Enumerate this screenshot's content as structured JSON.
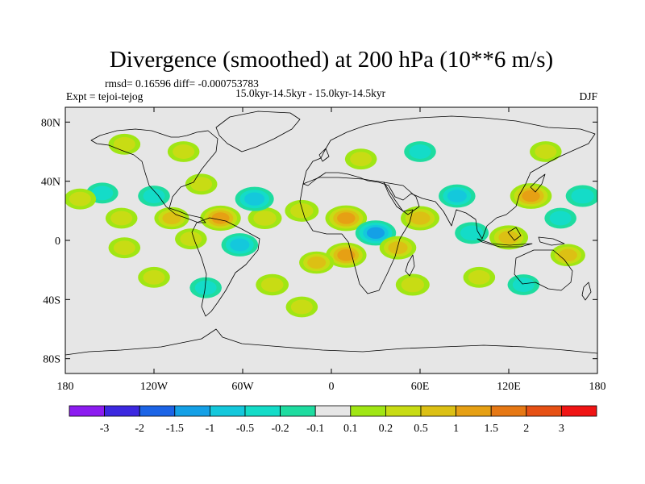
{
  "chart_data": {
    "type": "heatmap",
    "title": "Divergence (smoothed) at 200 hPa (10**6 m/s)",
    "stats_line": "rmsd= 0.16596 diff= -0.000753783",
    "period_line": "15.0kyr-14.5kyr - 15.0kyr-14.5kyr",
    "experiment": "Expt = tejoi-tejog",
    "season": "DJF",
    "x_ticks": [
      {
        "value": -180,
        "label": "180"
      },
      {
        "value": -120,
        "label": "120W"
      },
      {
        "value": -60,
        "label": "60W"
      },
      {
        "value": 0,
        "label": "0"
      },
      {
        "value": 60,
        "label": "60E"
      },
      {
        "value": 120,
        "label": "120E"
      },
      {
        "value": 180,
        "label": "180"
      }
    ],
    "y_ticks": [
      {
        "value": 80,
        "label": "80N"
      },
      {
        "value": 40,
        "label": "40N"
      },
      {
        "value": 0,
        "label": "0"
      },
      {
        "value": -40,
        "label": "40S"
      },
      {
        "value": -80,
        "label": "80S"
      }
    ],
    "xlim": [
      -180,
      180
    ],
    "ylim": [
      -90,
      90
    ],
    "colorbar": {
      "colors": [
        "#8c1cf0",
        "#3c28e0",
        "#1c64e6",
        "#14a0e6",
        "#14c8dc",
        "#14dcc8",
        "#1edca0",
        "#e6e6e6",
        "#a0e614",
        "#c8dc14",
        "#dcc014",
        "#e6a014",
        "#e67814",
        "#e65014",
        "#f01414"
      ],
      "labels": [
        "-3",
        "-2",
        "-1.5",
        "-1",
        "-0.5",
        "-0.2",
        "-0.1",
        "0.1",
        "0.2",
        "0.5",
        "1",
        "1.5",
        "2",
        "3"
      ],
      "levels": [
        -3,
        -2,
        -1.5,
        -1,
        -0.5,
        -0.2,
        -0.1,
        0.1,
        0.2,
        0.5,
        1,
        1.5,
        2,
        3
      ]
    },
    "anomalies": [
      {
        "lon": -142,
        "lat": 15,
        "value": 0.3
      },
      {
        "lon": -108,
        "lat": 15,
        "value": 0.6
      },
      {
        "lon": -75,
        "lat": 15,
        "value": 1.2
      },
      {
        "lon": -45,
        "lat": 15,
        "value": 0.5
      },
      {
        "lon": -155,
        "lat": 32,
        "value": -0.3
      },
      {
        "lon": -120,
        "lat": 30,
        "value": -0.3
      },
      {
        "lon": -88,
        "lat": 38,
        "value": 0.3
      },
      {
        "lon": -52,
        "lat": 28,
        "value": -1.0
      },
      {
        "lon": -170,
        "lat": 28,
        "value": 0.3
      },
      {
        "lon": -62,
        "lat": -3,
        "value": -0.8
      },
      {
        "lon": -95,
        "lat": 1,
        "value": 0.3
      },
      {
        "lon": -140,
        "lat": -5,
        "value": 0.3
      },
      {
        "lon": -20,
        "lat": 20,
        "value": 0.5
      },
      {
        "lon": 10,
        "lat": 15,
        "value": 1.3
      },
      {
        "lon": 30,
        "lat": 5,
        "value": -1.2
      },
      {
        "lon": 10,
        "lat": -10,
        "value": 1.2
      },
      {
        "lon": -10,
        "lat": -15,
        "value": 0.6
      },
      {
        "lon": 45,
        "lat": -5,
        "value": 0.8
      },
      {
        "lon": 60,
        "lat": 15,
        "value": 1.0
      },
      {
        "lon": 85,
        "lat": 30,
        "value": -0.8
      },
      {
        "lon": 95,
        "lat": 5,
        "value": -0.5
      },
      {
        "lon": 120,
        "lat": 2,
        "value": 1.0
      },
      {
        "lon": 135,
        "lat": 30,
        "value": 1.3
      },
      {
        "lon": 155,
        "lat": 15,
        "value": -0.3
      },
      {
        "lon": 170,
        "lat": 30,
        "value": -0.5
      },
      {
        "lon": 160,
        "lat": -10,
        "value": 0.6
      },
      {
        "lon": -40,
        "lat": -30,
        "value": 0.4
      },
      {
        "lon": -120,
        "lat": -25,
        "value": 0.3
      },
      {
        "lon": -85,
        "lat": -32,
        "value": -0.3
      },
      {
        "lon": 55,
        "lat": -30,
        "value": 0.5
      },
      {
        "lon": 100,
        "lat": -25,
        "value": 0.3
      },
      {
        "lon": 130,
        "lat": -30,
        "value": -0.3
      },
      {
        "lon": -20,
        "lat": -45,
        "value": 0.3
      },
      {
        "lon": 20,
        "lat": 55,
        "value": 0.3
      },
      {
        "lon": -100,
        "lat": 60,
        "value": 0.3
      },
      {
        "lon": 60,
        "lat": 60,
        "value": -0.3
      },
      {
        "lon": -140,
        "lat": 65,
        "value": 0.3
      },
      {
        "lon": 145,
        "lat": 60,
        "value": 0.3
      }
    ]
  }
}
